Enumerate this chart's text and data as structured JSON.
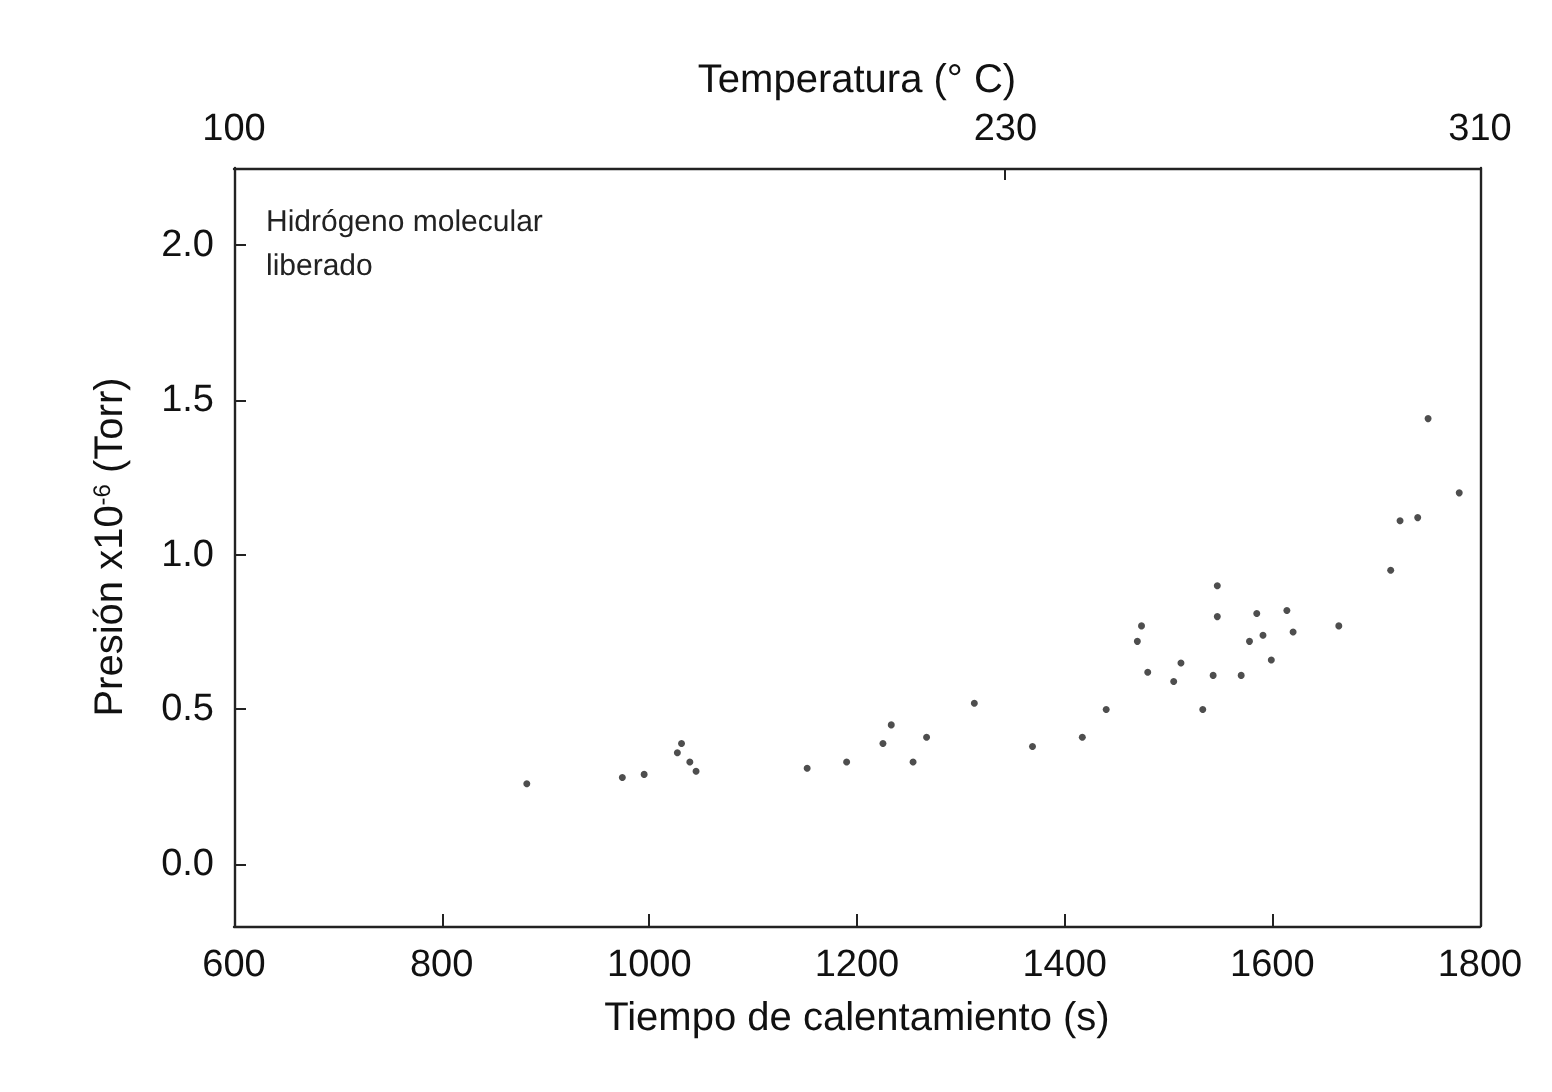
{
  "chart_data": {
    "type": "scatter",
    "xlabel": "Tiempo de calentamiento (s)",
    "ylabel": "Presión x10$^{-6}$ (Torr)",
    "x2label": "Temperatura (° C)",
    "annotations": [
      "Hidrógeno molecular\nliberado"
    ],
    "xlim": [
      600,
      1800
    ],
    "xticks": [
      600,
      800,
      1000,
      1200,
      1400,
      1600,
      1800
    ],
    "x2lim": [
      100,
      310
    ],
    "x2ticks": [
      100,
      230,
      310
    ],
    "ylim": [
      -0.2,
      2.25
    ],
    "yticks": [
      {
        "value": 0,
        "label": "0.0"
      },
      {
        "value": 0.5,
        "label": "0.5"
      },
      {
        "value": 1,
        "label": "1.0"
      },
      {
        "value": 1.5,
        "label": "1.5"
      },
      {
        "value": 2,
        "label": "2.0"
      }
    ],
    "marker": "circle",
    "grid": false,
    "series": [
      {
        "color": "#222222",
        "x": [
          882,
          974,
          995,
          1027,
          1031,
          1039,
          1045,
          1152,
          1190,
          1225,
          1233,
          1254,
          1267,
          1313,
          1369,
          1417,
          1440,
          1470,
          1474,
          1480,
          1505,
          1512,
          1533,
          1543,
          1547,
          1547,
          1570,
          1578,
          1585,
          1591,
          1599,
          1614,
          1620,
          1664,
          1714,
          1723,
          1740,
          1750,
          1780
        ],
        "values": [
          0.26,
          0.28,
          0.29,
          0.36,
          0.39,
          0.33,
          0.3,
          0.31,
          0.33,
          0.39,
          0.45,
          0.33,
          0.41,
          0.52,
          0.38,
          0.41,
          0.5,
          0.72,
          0.77,
          0.62,
          0.59,
          0.65,
          0.5,
          0.61,
          0.8,
          0.9,
          0.61,
          0.72,
          0.81,
          0.74,
          0.66,
          0.82,
          0.75,
          0.77,
          0.95,
          1.11,
          1.12,
          1.44,
          1.2
        ]
      }
    ]
  }
}
